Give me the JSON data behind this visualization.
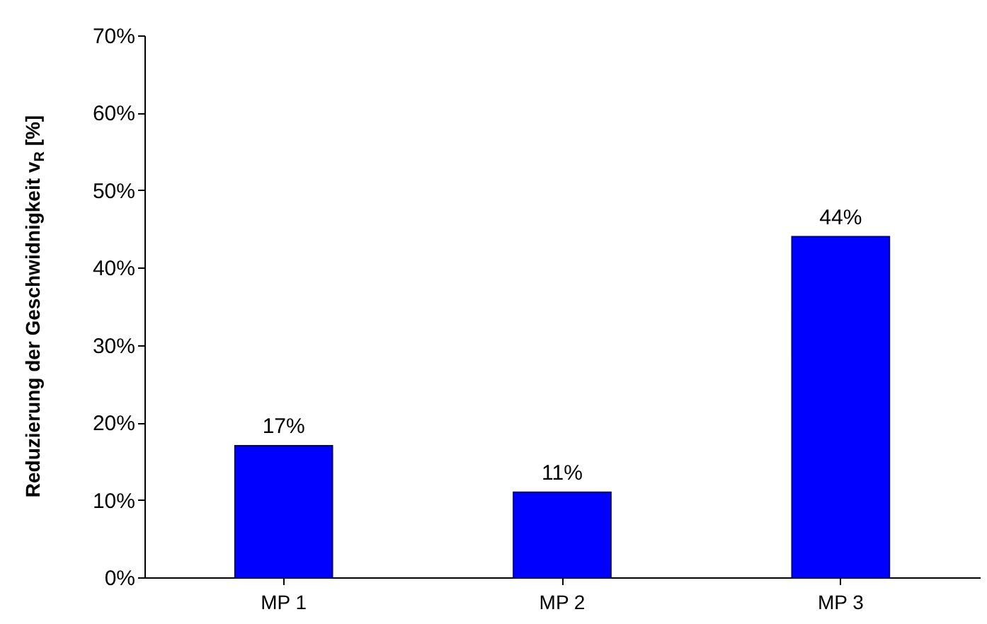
{
  "chart_data": {
    "type": "bar",
    "ylabel": "Reduzierung der Geschwidnigkeit v$_{R}$ [%]",
    "categories": [
      "MP 1",
      "MP 2",
      "MP 3"
    ],
    "values": [
      17,
      11,
      44
    ],
    "value_labels": [
      "17%",
      "11%",
      "44%"
    ],
    "color": "#0000ff",
    "ylim": [
      0,
      70
    ],
    "yticks": [
      {
        "value": 0,
        "label": "0%"
      },
      {
        "value": 10,
        "label": "10%"
      },
      {
        "value": 20,
        "label": "20%"
      },
      {
        "value": 30,
        "label": "30%"
      },
      {
        "value": 40,
        "label": "40%"
      },
      {
        "value": 50,
        "label": "50%"
      },
      {
        "value": 60,
        "label": "60%"
      },
      {
        "value": 70,
        "label": "70%"
      }
    ],
    "grid": false,
    "legend": false
  }
}
